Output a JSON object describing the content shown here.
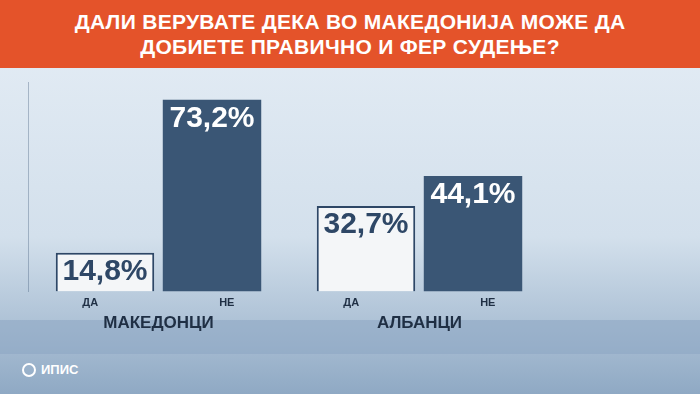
{
  "chart_data": {
    "type": "bar",
    "title": "ДАЛИ ВЕРУВАТЕ ДЕКА ВО МАКЕДОНИЈА МОЖЕ ДА ДОБИЕТЕ ПРАВИЧНО И ФЕР СУДЕЊЕ?",
    "categories": [
      "МАКЕДОНЦИ",
      "АЛБАНЦИ"
    ],
    "series": [
      {
        "name": "ДА",
        "color": "#f4f6f8",
        "values": [
          14.8,
          32.7
        ],
        "value_labels": [
          "14,8%",
          "32,7%"
        ]
      },
      {
        "name": "НЕ",
        "color": "#3a5675",
        "values": [
          73.2,
          44.1
        ],
        "value_labels": [
          "73,2%",
          "44,1%"
        ]
      }
    ],
    "ylim": [
      0,
      80
    ],
    "grid": false,
    "data_labels": true,
    "tick_labels": "x",
    "logo": "ИПИС"
  }
}
